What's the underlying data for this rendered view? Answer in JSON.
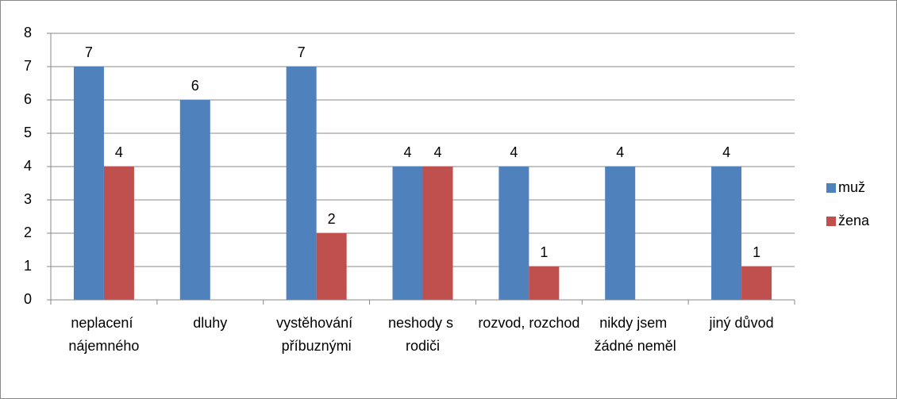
{
  "chart_data": {
    "type": "bar",
    "categories": [
      "neplacení nájemného",
      "dluhy",
      "vystěhování příbuznými",
      "neshody s rodiči",
      "rozvod, rozchod",
      "nikdy jsem žádné neměl",
      "jiný důvod"
    ],
    "series": [
      {
        "name": "muž",
        "color": "#4f81bd",
        "values": [
          7,
          6,
          7,
          4,
          4,
          4,
          4
        ]
      },
      {
        "name": "žena",
        "color": "#c0504d",
        "values": [
          4,
          null,
          2,
          4,
          1,
          null,
          1
        ]
      }
    ],
    "ylim": [
      0,
      8
    ],
    "yticks": [
      0,
      1,
      2,
      3,
      4,
      5,
      6,
      7,
      8
    ],
    "grid": true,
    "legend": "right"
  }
}
